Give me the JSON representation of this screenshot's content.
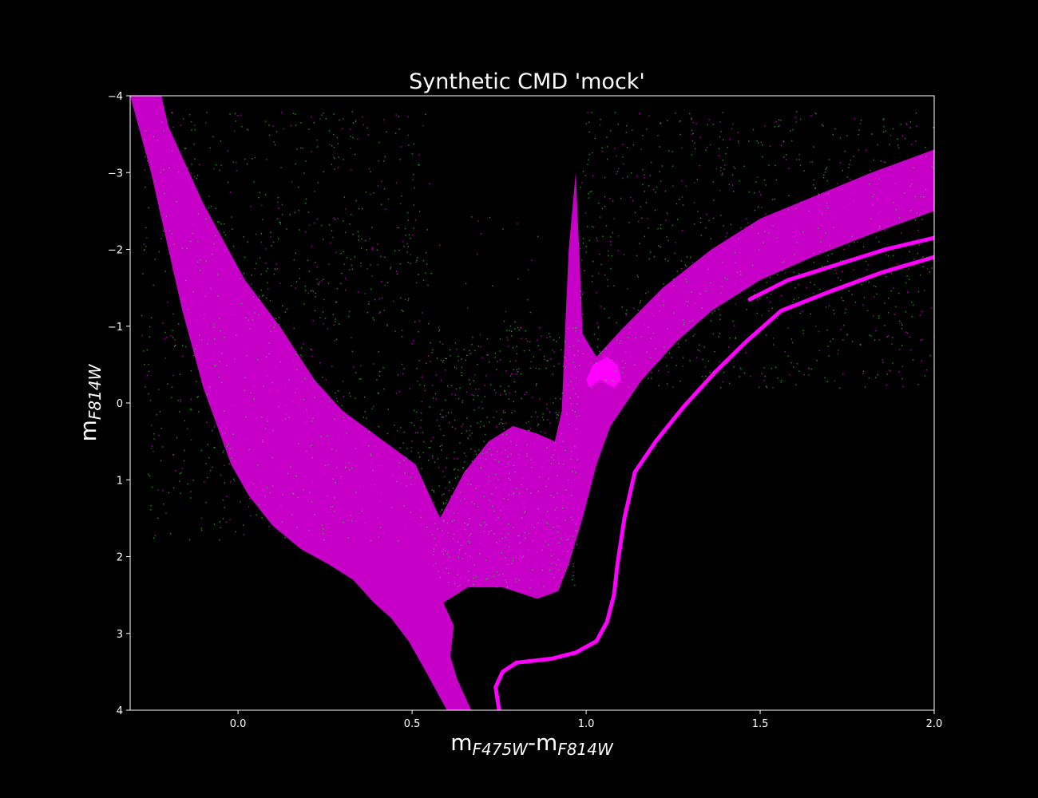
{
  "chart_data": {
    "type": "scatter",
    "title": "Synthetic CMD 'mock'",
    "xlabel": {
      "base1": "m",
      "sub1": "F475W",
      "sep": "-",
      "base2": "m",
      "sub2": "F814W"
    },
    "ylabel": {
      "base": "m",
      "sub": "F814W"
    },
    "xlim": [
      -0.31,
      2.0
    ],
    "ylim": [
      4,
      -4
    ],
    "y_inverted": true,
    "x_ticks": [
      {
        "value": 0.0,
        "label": "0.0"
      },
      {
        "value": 0.5,
        "label": "0.5"
      },
      {
        "value": 1.0,
        "label": "1.0"
      },
      {
        "value": 1.5,
        "label": "1.5"
      },
      {
        "value": 2.0,
        "label": "2.0"
      }
    ],
    "y_ticks": [
      {
        "value": -4,
        "label": "−4"
      },
      {
        "value": -3,
        "label": "−3"
      },
      {
        "value": -2,
        "label": "−2"
      },
      {
        "value": -1,
        "label": "−1"
      },
      {
        "value": 0,
        "label": "0"
      },
      {
        "value": 1,
        "label": "1"
      },
      {
        "value": 2,
        "label": "2"
      },
      {
        "value": 3,
        "label": "3"
      },
      {
        "value": 4,
        "label": "4"
      }
    ],
    "grid": false,
    "background": "#000000",
    "axes_color": "#ffffff",
    "series": [
      {
        "color": "#ff00ff",
        "kind": "dense-region",
        "points": [
          [
            -0.31,
            -4.0
          ],
          [
            -0.28,
            -3.5
          ],
          [
            -0.25,
            -3.0
          ],
          [
            -0.22,
            -2.4
          ],
          [
            -0.19,
            -1.8
          ],
          [
            -0.16,
            -1.2
          ],
          [
            -0.13,
            -0.7
          ],
          [
            -0.1,
            -0.2
          ],
          [
            -0.06,
            0.3
          ],
          [
            -0.02,
            0.8
          ],
          [
            0.03,
            1.2
          ],
          [
            0.1,
            1.6
          ],
          [
            0.18,
            1.9
          ],
          [
            0.26,
            2.1
          ],
          [
            0.33,
            2.3
          ],
          [
            0.39,
            2.6
          ],
          [
            0.44,
            2.8
          ],
          [
            0.49,
            3.1
          ],
          [
            0.54,
            3.5
          ],
          [
            0.6,
            4.0
          ],
          [
            0.67,
            4.0
          ],
          [
            0.63,
            3.6
          ],
          [
            0.61,
            3.3
          ],
          [
            0.62,
            2.9
          ],
          [
            0.59,
            2.6
          ],
          [
            0.66,
            2.4
          ],
          [
            0.76,
            2.4
          ],
          [
            0.86,
            2.55
          ],
          [
            0.92,
            2.45
          ],
          [
            0.95,
            2.1
          ],
          [
            0.99,
            1.5
          ],
          [
            1.03,
            0.8
          ],
          [
            1.07,
            0.3
          ],
          [
            1.1,
            0.1
          ],
          [
            1.16,
            -0.3
          ],
          [
            1.26,
            -0.8
          ],
          [
            1.36,
            -1.2
          ],
          [
            1.5,
            -1.6
          ],
          [
            1.65,
            -1.9
          ],
          [
            1.82,
            -2.2
          ],
          [
            2.0,
            -2.5
          ],
          [
            2.0,
            -3.3
          ],
          [
            1.82,
            -3.0
          ],
          [
            1.66,
            -2.7
          ],
          [
            1.5,
            -2.4
          ],
          [
            1.36,
            -2.0
          ],
          [
            1.22,
            -1.5
          ],
          [
            1.1,
            -0.95
          ],
          [
            1.03,
            -0.6
          ],
          [
            0.99,
            -0.9
          ],
          [
            0.98,
            -2.0
          ],
          [
            0.97,
            -3.0
          ],
          [
            0.95,
            -2.0
          ],
          [
            0.94,
            -1.0
          ],
          [
            0.93,
            0.1
          ],
          [
            0.91,
            0.5
          ],
          [
            0.86,
            0.4
          ],
          [
            0.79,
            0.3
          ],
          [
            0.72,
            0.5
          ],
          [
            0.65,
            0.9
          ],
          [
            0.58,
            1.5
          ],
          [
            0.51,
            0.8
          ],
          [
            0.42,
            0.5
          ],
          [
            0.3,
            0.1
          ],
          [
            0.22,
            -0.3
          ],
          [
            0.12,
            -1.0
          ],
          [
            0.02,
            -1.6
          ],
          [
            -0.1,
            -2.6
          ],
          [
            -0.2,
            -3.6
          ],
          [
            -0.22,
            -4.0
          ]
        ]
      },
      {
        "color": "#ff00ff",
        "kind": "track",
        "points": [
          [
            0.75,
            4.0
          ],
          [
            0.74,
            3.7
          ],
          [
            0.76,
            3.5
          ],
          [
            0.8,
            3.38
          ],
          [
            0.9,
            3.33
          ],
          [
            0.97,
            3.25
          ],
          [
            1.03,
            3.1
          ],
          [
            1.06,
            2.85
          ],
          [
            1.08,
            2.5
          ],
          [
            1.09,
            2.1
          ],
          [
            1.11,
            1.5
          ],
          [
            1.14,
            0.9
          ],
          [
            1.2,
            0.5
          ],
          [
            1.28,
            0.05
          ],
          [
            1.37,
            -0.4
          ],
          [
            1.46,
            -0.8
          ],
          [
            1.56,
            -1.2
          ],
          [
            1.7,
            -1.45
          ],
          [
            1.85,
            -1.7
          ],
          [
            2.0,
            -1.9
          ]
        ]
      },
      {
        "color": "#ff00ff",
        "kind": "track",
        "points": [
          [
            1.47,
            -1.35
          ],
          [
            1.58,
            -1.6
          ],
          [
            1.72,
            -1.8
          ],
          [
            1.86,
            -2.0
          ],
          [
            2.0,
            -2.15
          ]
        ]
      },
      {
        "color": "#ff00ff",
        "kind": "red-clump",
        "points": [
          [
            1.0,
            -0.3
          ],
          [
            1.02,
            -0.5
          ],
          [
            1.06,
            -0.6
          ],
          [
            1.09,
            -0.5
          ],
          [
            1.1,
            -0.3
          ],
          [
            1.08,
            -0.2
          ],
          [
            1.04,
            -0.3
          ],
          [
            1.01,
            -0.2
          ]
        ]
      },
      {
        "color": "#33cc33",
        "kind": "sparse-scatter"
      }
    ]
  }
}
